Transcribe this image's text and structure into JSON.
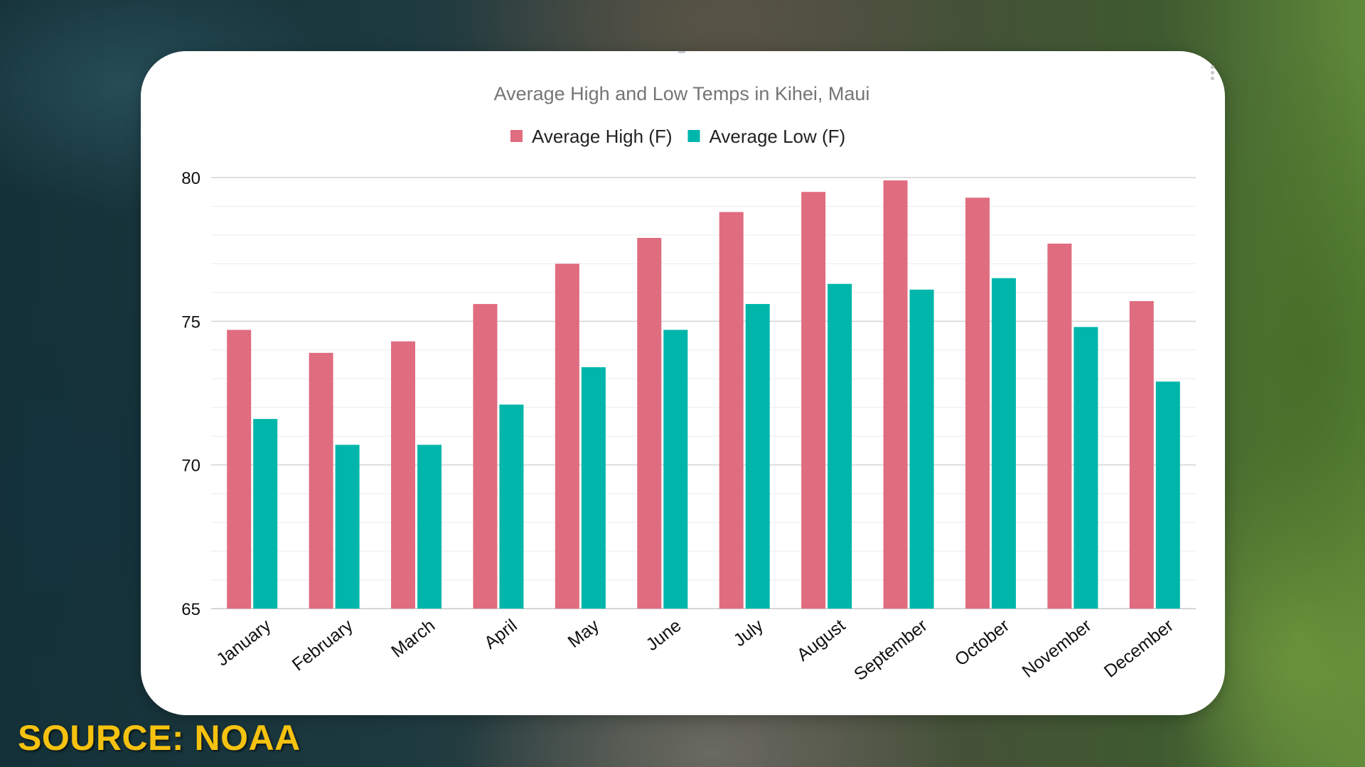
{
  "chart_data": {
    "type": "bar",
    "title": "Average High and Low Temps in Kihei, Maui",
    "categories": [
      "January",
      "February",
      "March",
      "April",
      "May",
      "June",
      "July",
      "August",
      "September",
      "October",
      "November",
      "December"
    ],
    "series": [
      {
        "name": "Average High (F)",
        "color": "#e06c80",
        "values": [
          74.7,
          73.9,
          74.3,
          75.6,
          77.0,
          77.9,
          78.8,
          79.5,
          79.9,
          79.3,
          77.7,
          75.7
        ]
      },
      {
        "name": "Average Low (F)",
        "color": "#00b6aa",
        "values": [
          71.6,
          70.7,
          70.7,
          72.1,
          73.4,
          74.7,
          75.6,
          76.3,
          76.1,
          76.5,
          74.8,
          72.9
        ]
      }
    ],
    "ylim": [
      65,
      80
    ],
    "yticks": [
      65,
      70,
      75,
      80
    ],
    "grid": true,
    "legend": "top-center",
    "xlabel": "",
    "ylabel": ""
  },
  "source_label": "SOURCE: NOAA"
}
